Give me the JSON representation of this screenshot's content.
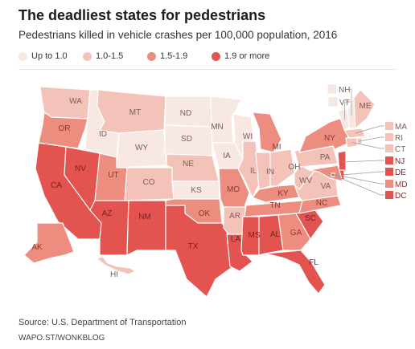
{
  "title": "The deadliest states for pedestrians",
  "subtitle": "Pedestrians killed in vehicle crashes per 100,000 population, 2016",
  "legend": [
    {
      "label": "Up to 1.0",
      "color": "#f8e8e4"
    },
    {
      "label": "1.0-1.5",
      "color": "#f3c2b8"
    },
    {
      "label": "1.5-1.9",
      "color": "#ec8d7f"
    },
    {
      "label": "1.9 or more",
      "color": "#e35350"
    }
  ],
  "source": "Source: U.S. Department of Transportation",
  "credit": "WAPO.ST/WONKBLOG",
  "colors": {
    "up_to_1": "#f8e8e4",
    "b1_1_5": "#f3c2b8",
    "b1_5_1_9": "#ec8d7f",
    "b1_9_plus": "#e35350",
    "border": "#ffffff"
  },
  "states": [
    {
      "abbr": "WA",
      "bin": 1
    },
    {
      "abbr": "OR",
      "bin": 2
    },
    {
      "abbr": "CA",
      "bin": 3
    },
    {
      "abbr": "NV",
      "bin": 3
    },
    {
      "abbr": "ID",
      "bin": 0
    },
    {
      "abbr": "MT",
      "bin": 1
    },
    {
      "abbr": "WY",
      "bin": 0
    },
    {
      "abbr": "UT",
      "bin": 2
    },
    {
      "abbr": "AZ",
      "bin": 3
    },
    {
      "abbr": "CO",
      "bin": 1
    },
    {
      "abbr": "NM",
      "bin": 3
    },
    {
      "abbr": "ND",
      "bin": 0
    },
    {
      "abbr": "SD",
      "bin": 0
    },
    {
      "abbr": "NE",
      "bin": 1
    },
    {
      "abbr": "KS",
      "bin": 0
    },
    {
      "abbr": "OK",
      "bin": 2
    },
    {
      "abbr": "TX",
      "bin": 3
    },
    {
      "abbr": "MN",
      "bin": 0
    },
    {
      "abbr": "IA",
      "bin": 0
    },
    {
      "abbr": "MO",
      "bin": 2
    },
    {
      "abbr": "AR",
      "bin": 1
    },
    {
      "abbr": "LA",
      "bin": 3
    },
    {
      "abbr": "WI",
      "bin": 0
    },
    {
      "abbr": "IL",
      "bin": 1
    },
    {
      "abbr": "MI",
      "bin": 2
    },
    {
      "abbr": "IN",
      "bin": 1
    },
    {
      "abbr": "OH",
      "bin": 1
    },
    {
      "abbr": "KY",
      "bin": 2
    },
    {
      "abbr": "TN",
      "bin": 2
    },
    {
      "abbr": "MS",
      "bin": 3
    },
    {
      "abbr": "AL",
      "bin": 3
    },
    {
      "abbr": "GA",
      "bin": 2
    },
    {
      "abbr": "FL",
      "bin": 3
    },
    {
      "abbr": "SC",
      "bin": 3
    },
    {
      "abbr": "NC",
      "bin": 2
    },
    {
      "abbr": "VA",
      "bin": 1
    },
    {
      "abbr": "WV",
      "bin": 1
    },
    {
      "abbr": "PA",
      "bin": 1
    },
    {
      "abbr": "NY",
      "bin": 2
    },
    {
      "abbr": "VT",
      "bin": 0
    },
    {
      "abbr": "NH",
      "bin": 0
    },
    {
      "abbr": "ME",
      "bin": 1
    },
    {
      "abbr": "MA",
      "bin": 1
    },
    {
      "abbr": "RI",
      "bin": 1
    },
    {
      "abbr": "CT",
      "bin": 1
    },
    {
      "abbr": "NJ",
      "bin": 3
    },
    {
      "abbr": "DE",
      "bin": 3
    },
    {
      "abbr": "MD",
      "bin": 2
    },
    {
      "abbr": "DC",
      "bin": 3
    },
    {
      "abbr": "AK",
      "bin": 2
    },
    {
      "abbr": "HI",
      "bin": 1
    }
  ]
}
